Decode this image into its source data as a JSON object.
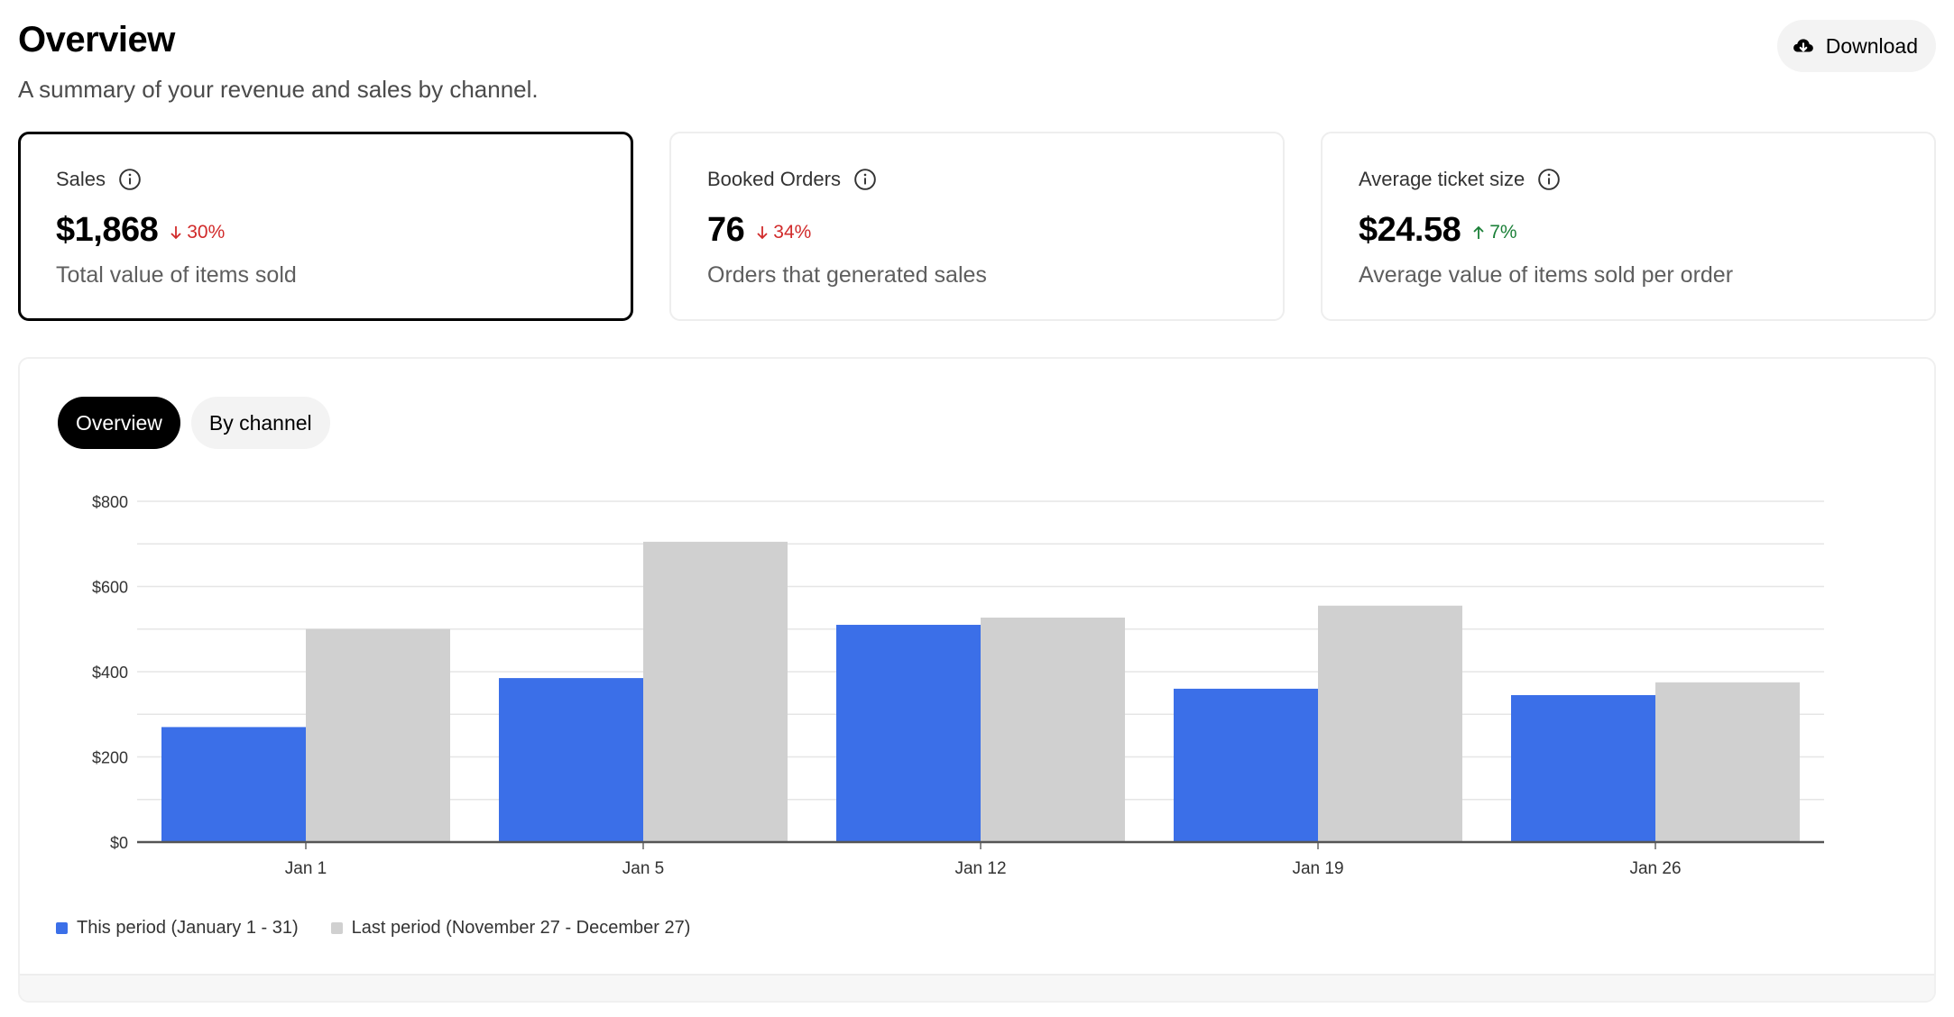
{
  "header": {
    "title": "Overview",
    "subtitle": "A summary of your revenue and sales by channel.",
    "download_label": "Download"
  },
  "cards": [
    {
      "label": "Sales",
      "value": "$1,868",
      "delta": "30%",
      "direction": "down",
      "description": "Total value of items sold",
      "selected": true
    },
    {
      "label": "Booked Orders",
      "value": "76",
      "delta": "34%",
      "direction": "down",
      "description": "Orders that generated sales",
      "selected": false
    },
    {
      "label": "Average ticket size",
      "value": "$24.58",
      "delta": "7%",
      "direction": "up",
      "description": "Average value of items sold per order",
      "selected": false
    }
  ],
  "tabs": [
    {
      "label": "Overview",
      "active": true
    },
    {
      "label": "By channel",
      "active": false
    }
  ],
  "colors": {
    "this_period": "#3b6fe8",
    "last_period": "#d0d0d0",
    "down": "#d12b2b",
    "up": "#1a7f37"
  },
  "chart_data": {
    "type": "bar",
    "categories": [
      "Jan 1",
      "Jan 5",
      "Jan 12",
      "Jan 19",
      "Jan 26"
    ],
    "series": [
      {
        "name": "This period (January 1 - 31)",
        "values": [
          270,
          385,
          510,
          360,
          345
        ]
      },
      {
        "name": "Last period (November 27 - December 27)",
        "values": [
          500,
          705,
          527,
          555,
          375
        ]
      }
    ],
    "y_ticks": [
      "$0",
      "$200",
      "$400",
      "$600",
      "$800"
    ],
    "ylim": [
      0,
      800
    ],
    "grid": true,
    "legend_position": "bottom-left"
  }
}
